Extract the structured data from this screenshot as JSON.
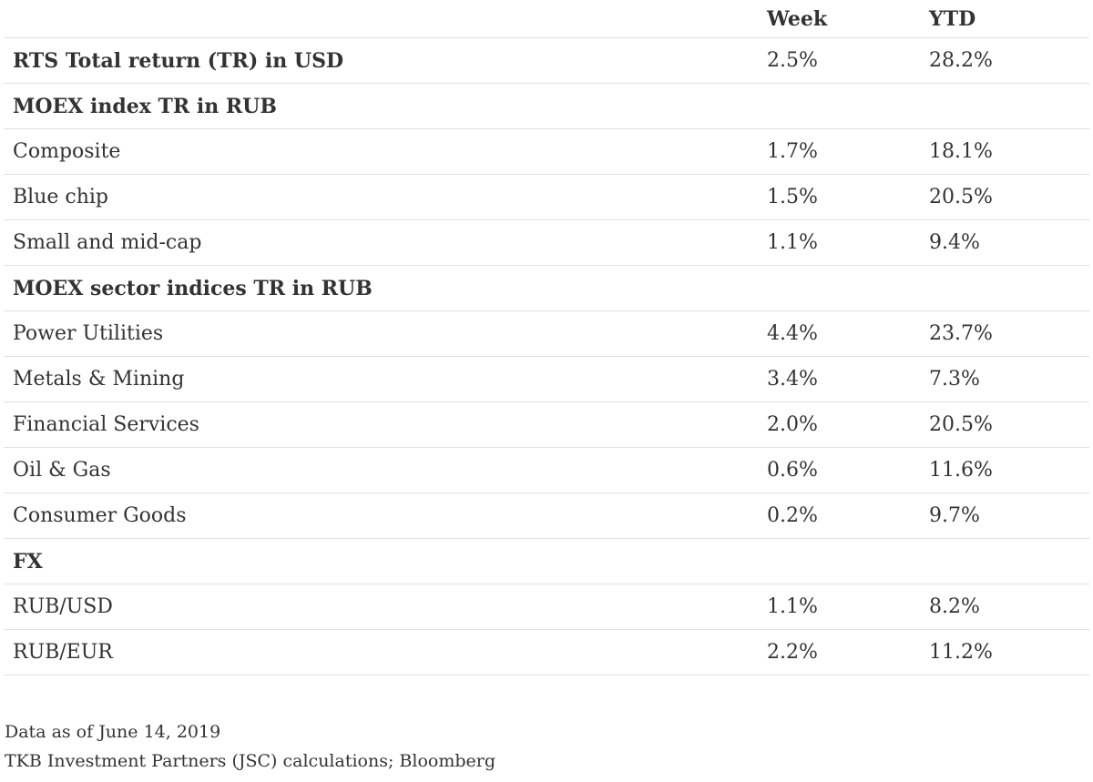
{
  "table": {
    "columns": [
      "",
      "Week",
      "YTD"
    ],
    "rows": [
      {
        "label": "RTS Total return (TR) in USD",
        "week": "2.5%",
        "ytd": "28.2%",
        "section": true
      },
      {
        "label": "MOEX index TR in RUB",
        "week": "",
        "ytd": "",
        "section": true
      },
      {
        "label": "Composite",
        "week": "1.7%",
        "ytd": "18.1%",
        "section": false
      },
      {
        "label": "Blue chip",
        "week": "1.5%",
        "ytd": "20.5%",
        "section": false
      },
      {
        "label": "Small and mid-cap",
        "week": "1.1%",
        "ytd": "9.4%",
        "section": false
      },
      {
        "label": "MOEX sector indices TR in RUB",
        "week": "",
        "ytd": "",
        "section": true
      },
      {
        "label": "Power Utilities",
        "week": "4.4%",
        "ytd": "23.7%",
        "section": false
      },
      {
        "label": "Metals & Mining",
        "week": "3.4%",
        "ytd": "7.3%",
        "section": false
      },
      {
        "label": "Financial Services",
        "week": "2.0%",
        "ytd": "20.5%",
        "section": false
      },
      {
        "label": "Oil & Gas",
        "week": "0.6%",
        "ytd": "11.6%",
        "section": false
      },
      {
        "label": "Consumer Goods",
        "week": "0.2%",
        "ytd": "9.7%",
        "section": false
      },
      {
        "label": "FX",
        "week": "",
        "ytd": "",
        "section": true
      },
      {
        "label": "RUB/USD",
        "week": "1.1%",
        "ytd": "8.2%",
        "section": false
      },
      {
        "label": "RUB/EUR",
        "week": "2.2%",
        "ytd": "11.2%",
        "section": false
      }
    ]
  },
  "footnotes": {
    "date": "Data as of June 14, 2019",
    "source": "TKB Investment Partners (JSC) calculations; Bloomberg"
  }
}
